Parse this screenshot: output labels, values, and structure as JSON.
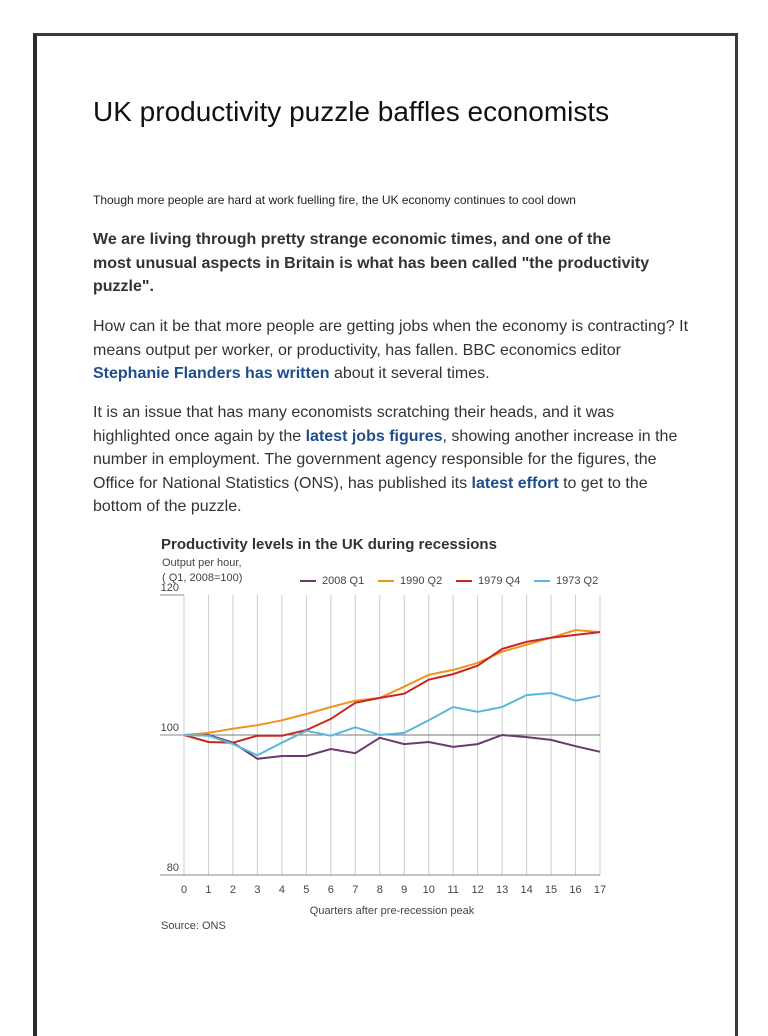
{
  "article": {
    "title": "UK productivity puzzle baffles economists",
    "subtitle": "Though more people are hard at work fuelling fire, the UK economy continues to cool down",
    "lead": "We are living through pretty strange economic times, and one of the most unusual aspects in Britain is what has been called \"the productivity puzzle\".",
    "paragraphs": [
      [
        {
          "text": "How can it be that more people are getting jobs when the economy is contracting? It means output per worker, or productivity, has fallen. BBC economics editor "
        },
        {
          "text": "Stephanie Flanders has written",
          "link": true
        },
        {
          "text": " about it several times."
        }
      ],
      [
        {
          "text": "It is an issue that has many economists scratching their heads, and it was highlighted once again by the "
        },
        {
          "text": "latest jobs figures",
          "link": true
        },
        {
          "text": ", showing another increase in the number in employment. The government agency responsible for the figures, the Office for National Statistics (ONS), has published its "
        },
        {
          "text": "latest effort",
          "link": true
        },
        {
          "text": " to get to the bottom of the puzzle."
        }
      ]
    ]
  },
  "chart_data": {
    "type": "line",
    "title": "Productivity levels in the UK during recessions",
    "y_label": [
      "Output per hour,",
      "( Q1, 2008=100)"
    ],
    "x_label": "Quarters after pre-recession peak",
    "source": "Source: ONS",
    "x": [
      0,
      1,
      2,
      3,
      4,
      5,
      6,
      7,
      8,
      9,
      10,
      11,
      12,
      13,
      14,
      15,
      16,
      17
    ],
    "xlim": [
      0,
      17
    ],
    "xticks": [
      0,
      1,
      2,
      3,
      4,
      5,
      6,
      7,
      8,
      9,
      10,
      11,
      12,
      13,
      14,
      15,
      16,
      17
    ],
    "ylim": [
      80,
      120
    ],
    "yticks": [
      80,
      100,
      120
    ],
    "grid": true,
    "series": [
      {
        "name": "2008 Q1",
        "color": "#6b3a6e",
        "values": [
          100,
          100,
          98.9,
          96.6,
          97,
          97,
          98,
          97.4,
          99.6,
          98.7,
          99,
          98.3,
          98.7,
          100,
          99.7,
          99.3,
          98.4,
          97.6
        ]
      },
      {
        "name": "1990 Q2",
        "color": "#f0921e",
        "values": [
          100,
          100.3,
          100.9,
          101.4,
          102.1,
          103,
          104,
          104.9,
          105.3,
          106.9,
          108.6,
          109.3,
          110.3,
          111.9,
          112.9,
          113.9,
          115,
          114.7
        ]
      },
      {
        "name": "1979 Q4",
        "color": "#c8281e",
        "values": [
          100,
          99,
          98.9,
          99.9,
          99.9,
          100.7,
          102.3,
          104.6,
          105.3,
          105.9,
          107.9,
          108.7,
          109.9,
          112.3,
          113.3,
          113.9,
          114.3,
          114.7
        ]
      },
      {
        "name": "1973 Q2",
        "color": "#5bb8dc",
        "values": [
          100,
          99.9,
          98.7,
          97.1,
          98.9,
          100.6,
          99.9,
          101.1,
          100,
          100.3,
          102.1,
          104,
          103.3,
          104,
          105.7,
          106,
          104.9,
          105.6
        ]
      }
    ]
  }
}
